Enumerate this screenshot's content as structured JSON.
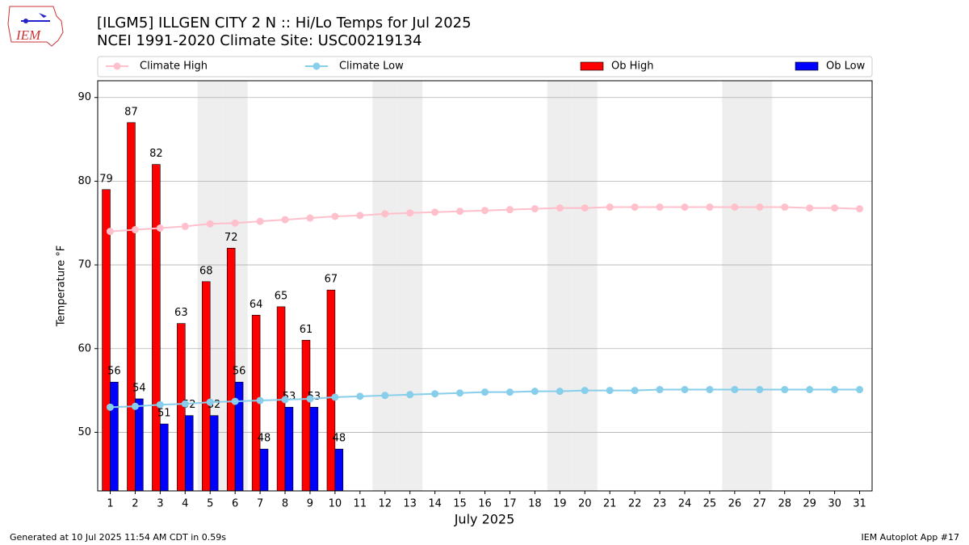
{
  "logo_text": "IEM",
  "footer": {
    "left": "Generated at 10 Jul 2025 11:54 AM CDT in 0.59s",
    "right": "IEM Autoplot App #17"
  },
  "chart_data": {
    "type": "bar",
    "title": "[ILGM5] ILLGEN CITY 2 N :: Hi/Lo Temps for Jul 2025",
    "subtitle": "NCEI 1991-2020 Climate Site: USC00219134",
    "x_label": "July 2025",
    "y_label": "Temperature °F",
    "x": [
      1,
      2,
      3,
      4,
      5,
      6,
      7,
      8,
      9,
      10,
      11,
      12,
      13,
      14,
      15,
      16,
      17,
      18,
      19,
      20,
      21,
      22,
      23,
      24,
      25,
      26,
      27,
      28,
      29,
      30,
      31
    ],
    "xlim": [
      0.5,
      31.5
    ],
    "xticks": [
      1,
      2,
      3,
      4,
      5,
      6,
      7,
      8,
      9,
      10,
      11,
      12,
      13,
      14,
      15,
      16,
      17,
      18,
      19,
      20,
      21,
      22,
      23,
      24,
      25,
      26,
      27,
      28,
      29,
      30,
      31
    ],
    "ylim": [
      43,
      92
    ],
    "yticks": [
      50,
      60,
      70,
      80,
      90
    ],
    "grid": true,
    "shaded_days": [
      5,
      6,
      12,
      13,
      19,
      20,
      26,
      27
    ],
    "shade_color": "#eeeeee",
    "legend": "top",
    "series": [
      {
        "name": "Climate High",
        "type": "line",
        "color": "pink",
        "values": [
          74.0,
          74.2,
          74.4,
          74.6,
          74.9,
          75.0,
          75.2,
          75.4,
          75.6,
          75.8,
          75.9,
          76.1,
          76.2,
          76.3,
          76.4,
          76.5,
          76.6,
          76.7,
          76.8,
          76.8,
          76.9,
          76.9,
          76.9,
          76.9,
          76.9,
          76.9,
          76.9,
          76.9,
          76.8,
          76.8,
          76.7
        ]
      },
      {
        "name": "Climate Low",
        "type": "line",
        "color": "skyblue",
        "values": [
          53.0,
          53.1,
          53.3,
          53.4,
          53.6,
          53.7,
          53.8,
          53.9,
          54.0,
          54.2,
          54.3,
          54.4,
          54.5,
          54.6,
          54.7,
          54.8,
          54.8,
          54.9,
          54.9,
          55.0,
          55.0,
          55.0,
          55.1,
          55.1,
          55.1,
          55.1,
          55.1,
          55.1,
          55.1,
          55.1,
          55.1
        ]
      },
      {
        "name": "Ob High",
        "type": "bar",
        "color": "red",
        "values": [
          79,
          87,
          82,
          63,
          68,
          72,
          64,
          65,
          61,
          67,
          null,
          null,
          null,
          null,
          null,
          null,
          null,
          null,
          null,
          null,
          null,
          null,
          null,
          null,
          null,
          null,
          null,
          null,
          null,
          null,
          null
        ]
      },
      {
        "name": "Ob Low",
        "type": "bar",
        "color": "blue",
        "values": [
          56,
          54,
          51,
          52,
          52,
          56,
          48,
          53,
          53,
          48,
          null,
          null,
          null,
          null,
          null,
          null,
          null,
          null,
          null,
          null,
          null,
          null,
          null,
          null,
          null,
          null,
          null,
          null,
          null,
          null,
          null
        ]
      }
    ]
  }
}
